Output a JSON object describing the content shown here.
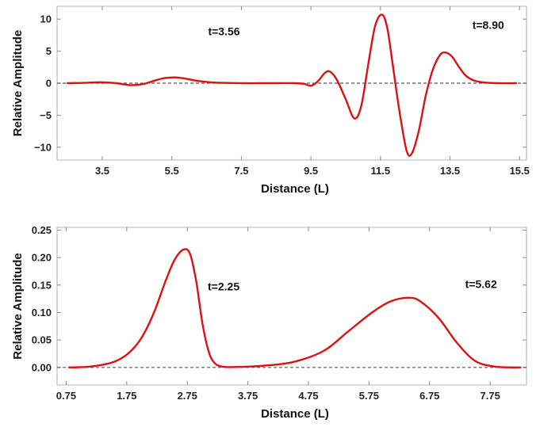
{
  "chart_data": [
    {
      "type": "line",
      "xlabel": "Distance (L)",
      "ylabel": "Relative Amplitude",
      "xlim": [
        2.2,
        15.7
      ],
      "ylim": [
        -12,
        12
      ],
      "xticks": [
        3.5,
        5.5,
        7.5,
        9.5,
        11.5,
        13.5,
        15.5
      ],
      "xtick_labels": [
        "3.5",
        "5.5",
        "7.5",
        "9.5",
        "11.5",
        "13.5",
        "15.5"
      ],
      "yticks": [
        -10,
        -5,
        0,
        5,
        10
      ],
      "ytick_labels": [
        "−10",
        "−5",
        "0",
        "5",
        "10"
      ],
      "baseline": {
        "y": 0,
        "style": "dashed",
        "color": "#555555"
      },
      "annotations": [
        {
          "text": "t=3.56",
          "x": 7.0,
          "y": 7.5
        },
        {
          "text": "t=8.90",
          "x": 14.6,
          "y": 8.5
        }
      ],
      "series": [
        {
          "color": "#dd1111",
          "x": [
            2.5,
            3.0,
            3.4,
            3.9,
            4.3,
            4.7,
            5.0,
            5.3,
            5.6,
            5.9,
            6.2,
            6.6,
            7.0,
            7.5,
            8.0,
            8.5,
            9.0,
            9.3,
            9.5,
            9.7,
            9.9,
            10.05,
            10.25,
            10.5,
            10.75,
            10.95,
            11.15,
            11.35,
            11.55,
            11.7,
            11.85,
            12.05,
            12.25,
            12.4,
            12.6,
            12.8,
            13.0,
            13.2,
            13.35,
            13.55,
            13.75,
            13.95,
            14.2,
            14.5,
            14.9,
            15.4
          ],
          "y": [
            0.0,
            0.05,
            0.15,
            0.0,
            -0.3,
            -0.1,
            0.4,
            0.8,
            0.9,
            0.7,
            0.4,
            0.15,
            0.05,
            0.0,
            0.0,
            0.0,
            0.0,
            -0.1,
            -0.4,
            0.3,
            1.6,
            1.8,
            0.5,
            -2.5,
            -5.5,
            -3.5,
            3.0,
            9.0,
            10.7,
            8.5,
            3.0,
            -4.5,
            -10.5,
            -11.0,
            -7.5,
            -2.0,
            2.0,
            4.3,
            4.8,
            4.2,
            2.6,
            1.2,
            0.4,
            0.1,
            0.0,
            0.0
          ]
        }
      ]
    },
    {
      "type": "line",
      "xlabel": "Distance (L)",
      "ylabel": "Relative Amplitude",
      "xlim": [
        0.6,
        8.35
      ],
      "ylim": [
        -0.032,
        0.255
      ],
      "xticks": [
        0.75,
        1.75,
        2.75,
        3.75,
        4.75,
        5.75,
        6.75,
        7.75
      ],
      "xtick_labels": [
        "0.75",
        "1.75",
        "2.75",
        "3.75",
        "4.75",
        "5.75",
        "6.75",
        "7.75"
      ],
      "yticks": [
        0.0,
        0.05,
        0.1,
        0.15,
        0.2,
        0.25
      ],
      "ytick_labels": [
        "0.00",
        "0.05",
        "0.10",
        "0.15",
        "0.20",
        "0.25"
      ],
      "baseline": {
        "y": 0,
        "style": "dashed",
        "color": "#555555"
      },
      "annotations": [
        {
          "text": "t=2.25",
          "x": 3.35,
          "y": 0.14
        },
        {
          "text": "t=5.62",
          "x": 7.6,
          "y": 0.145
        }
      ],
      "series": [
        {
          "color": "#dd1111",
          "x": [
            0.8,
            1.1,
            1.4,
            1.6,
            1.8,
            2.0,
            2.2,
            2.4,
            2.55,
            2.7,
            2.8,
            2.9,
            3.0,
            3.1,
            3.2,
            3.35,
            3.6,
            4.0,
            4.5,
            5.0,
            5.4,
            5.8,
            6.1,
            6.4,
            6.6,
            6.9,
            7.2,
            7.5,
            7.8,
            8.1,
            8.25
          ],
          "y": [
            0.0,
            0.001,
            0.006,
            0.013,
            0.028,
            0.055,
            0.1,
            0.16,
            0.198,
            0.215,
            0.205,
            0.155,
            0.08,
            0.03,
            0.008,
            0.001,
            0.001,
            0.003,
            0.01,
            0.03,
            0.065,
            0.1,
            0.12,
            0.127,
            0.12,
            0.09,
            0.045,
            0.012,
            0.002,
            0.0,
            0.0
          ]
        }
      ]
    }
  ]
}
